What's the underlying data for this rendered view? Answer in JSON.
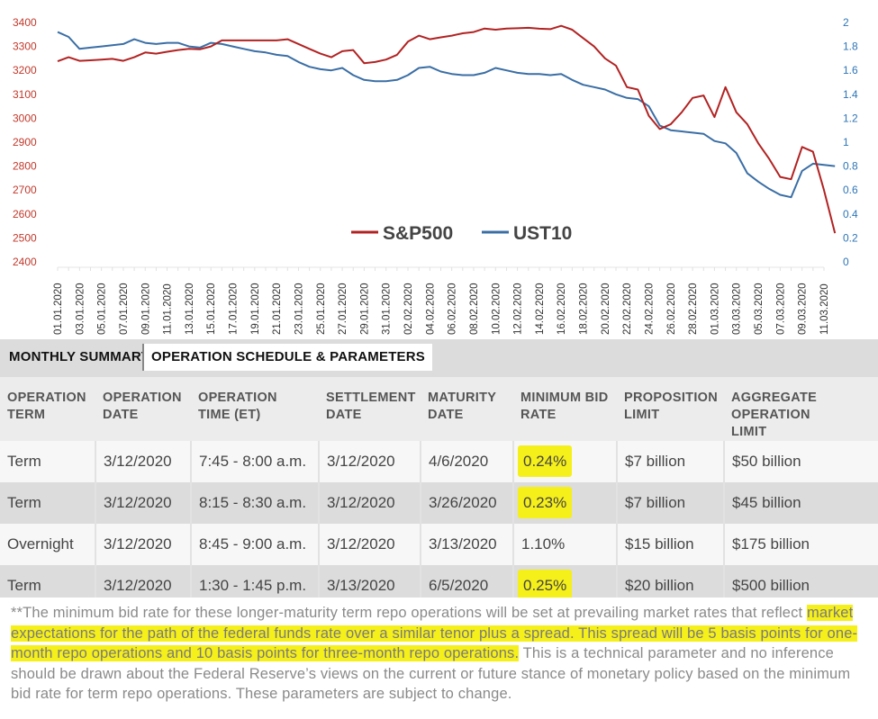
{
  "chart_data": {
    "type": "line",
    "legend": [
      "S&P500",
      "UST10"
    ],
    "colors": {
      "sp500": "#b22222",
      "ust10": "#3a6ea5"
    },
    "left_axis": {
      "ticks": [
        2400,
        2500,
        2600,
        2700,
        2800,
        2900,
        3000,
        3100,
        3200,
        3300,
        3400
      ],
      "ylim": [
        2400,
        3400
      ]
    },
    "right_axis": {
      "ticks": [
        "0",
        "0.2",
        "0.4",
        "0.6",
        "0.8",
        "1",
        "1.2",
        "1.4",
        "1.6",
        "1.8",
        "2"
      ],
      "ylim": [
        0,
        2
      ]
    },
    "x_labels": [
      "01.01.2020",
      "03.01.2020",
      "05.01.2020",
      "07.01.2020",
      "09.01.2020",
      "11.01.2020",
      "13.01.2020",
      "15.01.2020",
      "17.01.2020",
      "19.01.2020",
      "21.01.2020",
      "23.01.2020",
      "25.01.2020",
      "27.01.2020",
      "29.01.2020",
      "31.01.2020",
      "02.02.2020",
      "04.02.2020",
      "06.02.2020",
      "08.02.2020",
      "10.02.2020",
      "12.02.2020",
      "14.02.2020",
      "16.02.2020",
      "18.02.2020",
      "20.02.2020",
      "22.02.2020",
      "24.02.2020",
      "26.02.2020",
      "28.02.2020",
      "01.03.2020",
      "03.03.2020",
      "05.03.2020",
      "07.03.2020",
      "09.03.2020",
      "11.03.2020"
    ],
    "series": [
      {
        "name": "S&P500",
        "axis": "left",
        "x_day": [
          0,
          1,
          2,
          3,
          4,
          5,
          6,
          7,
          8,
          9,
          10,
          11,
          12,
          13,
          14,
          15,
          16,
          17,
          18,
          19,
          20,
          21,
          22,
          23,
          24,
          25,
          26,
          27,
          28,
          29,
          30,
          31,
          32,
          33,
          34,
          35,
          36,
          37,
          38,
          39,
          40,
          41,
          42,
          43,
          44,
          45,
          46,
          47,
          48,
          49,
          50,
          51,
          52,
          53,
          54,
          55,
          56,
          57,
          58,
          59,
          60,
          61,
          62,
          63,
          64,
          65,
          66,
          67,
          68,
          69,
          70,
          71
        ],
        "values": [
          3238,
          3255,
          3240,
          3242,
          3245,
          3248,
          3240,
          3255,
          3275,
          3270,
          3278,
          3285,
          3290,
          3288,
          3300,
          3325,
          3325,
          3325,
          3325,
          3325,
          3325,
          3330,
          3310,
          3290,
          3270,
          3255,
          3280,
          3285,
          3230,
          3235,
          3245,
          3265,
          3320,
          3345,
          3330,
          3338,
          3345,
          3355,
          3360,
          3375,
          3370,
          3375,
          3376,
          3378,
          3374,
          3372,
          3386,
          3370,
          3335,
          3300,
          3250,
          3220,
          3130,
          3120,
          3010,
          2955,
          2975,
          3025,
          3085,
          3095,
          3005,
          3130,
          3025,
          2975,
          2895,
          2830,
          2755,
          2745,
          2880,
          2860,
          2700,
          2520
        ]
      },
      {
        "name": "UST10",
        "axis": "right",
        "x_day": [
          0,
          1,
          2,
          3,
          4,
          5,
          6,
          7,
          8,
          9,
          10,
          11,
          12,
          13,
          14,
          15,
          16,
          17,
          18,
          19,
          20,
          21,
          22,
          23,
          24,
          25,
          26,
          27,
          28,
          29,
          30,
          31,
          32,
          33,
          34,
          35,
          36,
          37,
          38,
          39,
          40,
          41,
          42,
          43,
          44,
          45,
          46,
          47,
          48,
          49,
          50,
          51,
          52,
          53,
          54,
          55,
          56,
          57,
          58,
          59,
          60,
          61,
          62,
          63,
          64,
          65,
          66,
          67,
          68,
          69,
          70,
          71
        ],
        "values": [
          1.92,
          1.88,
          1.78,
          1.79,
          1.8,
          1.81,
          1.82,
          1.86,
          1.83,
          1.82,
          1.83,
          1.83,
          1.8,
          1.79,
          1.83,
          1.82,
          1.8,
          1.78,
          1.76,
          1.75,
          1.73,
          1.72,
          1.67,
          1.63,
          1.61,
          1.6,
          1.62,
          1.56,
          1.52,
          1.51,
          1.51,
          1.52,
          1.56,
          1.62,
          1.63,
          1.59,
          1.57,
          1.56,
          1.56,
          1.58,
          1.62,
          1.6,
          1.58,
          1.57,
          1.57,
          1.56,
          1.57,
          1.52,
          1.48,
          1.46,
          1.44,
          1.4,
          1.37,
          1.36,
          1.3,
          1.14,
          1.1,
          1.09,
          1.08,
          1.07,
          1.01,
          0.99,
          0.91,
          0.74,
          0.67,
          0.61,
          0.56,
          0.54,
          0.76,
          0.82,
          0.81,
          0.8
        ]
      }
    ]
  },
  "tabs": {
    "monthly": "MONTHLY SUMMARY",
    "schedule": "OPERATION SCHEDULE & PARAMETERS"
  },
  "table": {
    "headers": [
      [
        "OPERATION",
        "TERM"
      ],
      [
        "OPERATION",
        "DATE"
      ],
      [
        "OPERATION",
        "TIME (ET)"
      ],
      [
        "SETTLEMENT",
        "DATE"
      ],
      [
        "MATURITY",
        "DATE"
      ],
      [
        "MINIMUM BID",
        "RATE"
      ],
      [
        "PROPOSITION",
        "LIMIT"
      ],
      [
        "AGGREGATE OPERATION",
        "LIMIT"
      ]
    ],
    "rows": [
      [
        "Term",
        "3/12/2020",
        "7:45 - 8:00 a.m.",
        "3/12/2020",
        "4/6/2020",
        "0.24%",
        "$7 billion",
        "$50 billion"
      ],
      [
        "Term",
        "3/12/2020",
        "8:15 - 8:30 a.m.",
        "3/12/2020",
        "3/26/2020",
        "0.23%",
        "$7 billion",
        "$45 billion"
      ],
      [
        "Overnight",
        "3/12/2020",
        "8:45 - 9:00 a.m.",
        "3/12/2020",
        "3/13/2020",
        "1.10%",
        "$15 billion",
        "$175 billion"
      ],
      [
        "Term",
        "3/12/2020",
        "1:30 - 1:45 p.m.",
        "3/13/2020",
        "6/5/2020",
        "0.25%",
        "$20 billion",
        "$500 billion"
      ]
    ],
    "highlighted_rows": [
      0,
      1,
      3
    ]
  },
  "footnote": {
    "part1": "**The minimum bid rate for these longer-maturity term repo operations will be set at prevailing market rates that reflect ",
    "highlighted": "market expectations for the path of the federal funds rate over a similar tenor plus a spread. This spread will be 5 basis points for one-month repo operations and 10 basis points for three-month repo operations.",
    "part2": " This is a technical parameter and no inference should be drawn about the Federal Reserve’s views on the current or future stance of monetary policy based on the minimum bid rate for term repo operations. These parameters are subject to change."
  }
}
